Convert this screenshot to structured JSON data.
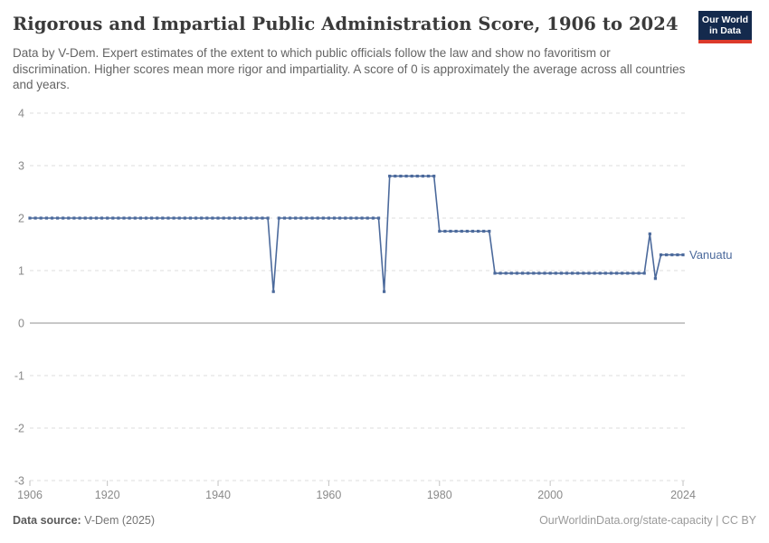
{
  "header": {
    "title": "Rigorous and Impartial Public Administration Score, 1906 to 2024",
    "subtitle": "Data by V-Dem. Expert estimates of the extent to which public officials follow the law and show no favoritism or discrimination. Higher scores mean more rigor and impartiality. A score of 0 is approximately the average across all countries and years.",
    "logo": {
      "line1": "Our World",
      "line2": "in Data",
      "bg_color": "#142a4d",
      "accent_color": "#dc3a2b",
      "text_color": "#ffffff"
    }
  },
  "chart_data": {
    "type": "line",
    "title": "Rigorous and Impartial Public Administration Score, 1906 to 2024",
    "xlabel": "",
    "ylabel": "",
    "xlim": [
      1906,
      2024
    ],
    "ylim": [
      -3,
      4
    ],
    "x_ticks": [
      1906,
      1920,
      1940,
      1960,
      1980,
      2000,
      2024
    ],
    "y_ticks": [
      4,
      3,
      2,
      1,
      0,
      -1,
      -2,
      -3
    ],
    "grid": "horizontal-dashed",
    "zero_line": true,
    "legend_position": "end-of-line-label",
    "colors": {
      "gridline": "#dedede",
      "zero_line": "#a8a8a8",
      "tick_label": "#8a8a8a",
      "tick_mark": "#c2c2c2"
    },
    "series": [
      {
        "name": "Vanuatu",
        "color": "#4c6a9c",
        "x_start": 1906,
        "values": [
          2,
          2,
          2,
          2,
          2,
          2,
          2,
          2,
          2,
          2,
          2,
          2,
          2,
          2,
          2,
          2,
          2,
          2,
          2,
          2,
          2,
          2,
          2,
          2,
          2,
          2,
          2,
          2,
          2,
          2,
          2,
          2,
          2,
          2,
          2,
          2,
          2,
          2,
          2,
          2,
          2,
          2,
          2,
          2,
          0.6,
          2,
          2,
          2,
          2,
          2,
          2,
          2,
          2,
          2,
          2,
          2,
          2,
          2,
          2,
          2,
          2,
          2,
          2,
          2,
          0.6,
          2.8,
          2.8,
          2.8,
          2.8,
          2.8,
          2.8,
          2.8,
          2.8,
          2.8,
          1.75,
          1.75,
          1.75,
          1.75,
          1.75,
          1.75,
          1.75,
          1.75,
          1.75,
          1.75,
          0.95,
          0.95,
          0.95,
          0.95,
          0.95,
          0.95,
          0.95,
          0.95,
          0.95,
          0.95,
          0.95,
          0.95,
          0.95,
          0.95,
          0.95,
          0.95,
          0.95,
          0.95,
          0.95,
          0.95,
          0.95,
          0.95,
          0.95,
          0.95,
          0.95,
          0.95,
          0.95,
          0.95,
          1.7,
          0.85,
          1.3,
          1.3,
          1.3,
          1.3,
          1.3
        ]
      }
    ]
  },
  "footer": {
    "source_label": "Data source:",
    "source_value": "V-Dem (2025)",
    "link": "OurWorldinData.org/state-capacity",
    "license": " | CC BY"
  }
}
